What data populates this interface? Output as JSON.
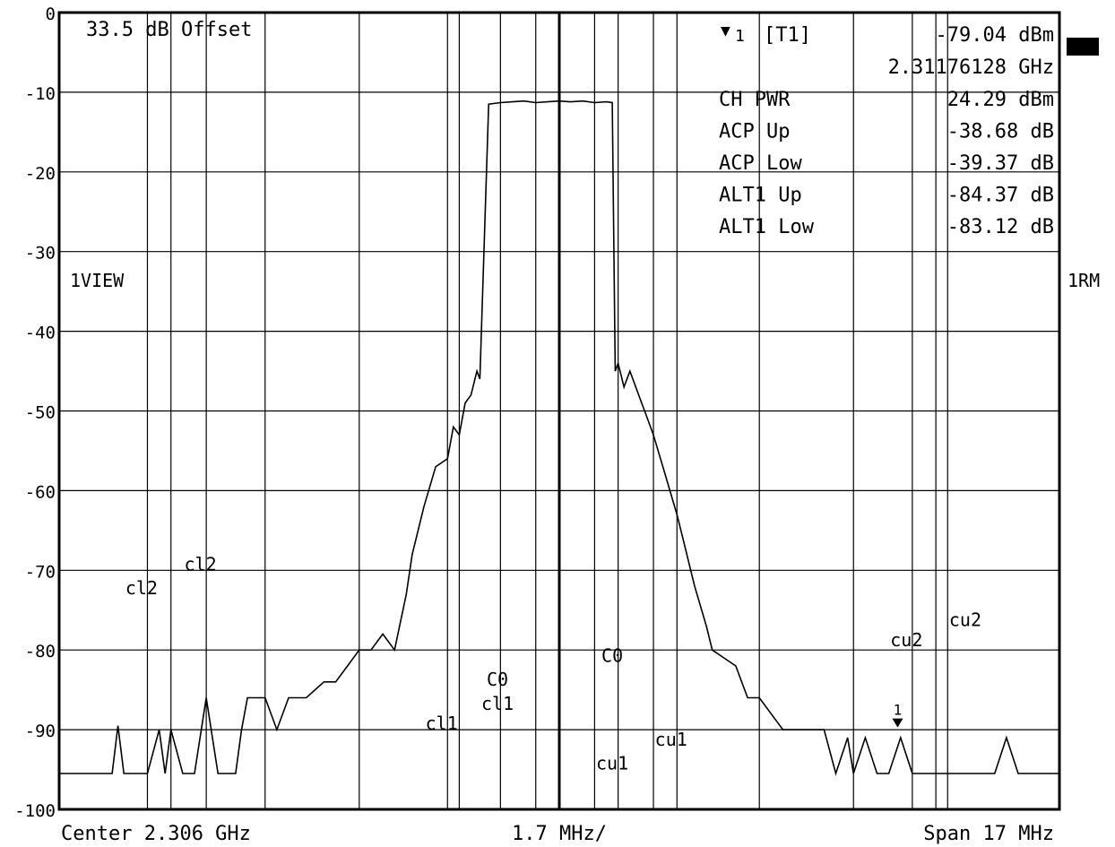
{
  "chart_data": {
    "type": "line",
    "title": "",
    "reference_offset_text": "33.5 dB Offset",
    "y_ticks": [
      "0",
      "-10",
      "-20",
      "-30",
      "-40",
      "-50",
      "-60",
      "-70",
      "-80",
      "-90",
      "-100"
    ],
    "ylim": [
      -100,
      0
    ],
    "grid": true,
    "left_label": "1VIEW",
    "right_label": "1RM",
    "bottom": {
      "center": "Center 2.306 GHz",
      "per_div": "1.7 MHz/",
      "span": "Span 17 MHz"
    },
    "x_mhz_range": [
      -8.5,
      8.5
    ],
    "x_unit_note": "MHz offset from center",
    "series": [
      {
        "x": [
          -8.5,
          -8.0,
          -7.6,
          -7.5,
          -7.4,
          -7.0,
          -6.8,
          -6.7,
          -6.6,
          -6.4,
          -6.2,
          -6.0,
          -5.8,
          -5.5,
          -5.4,
          -5.3,
          -5.0,
          -4.8,
          -4.6,
          -4.5,
          -4.3,
          -4.0,
          -3.8,
          -3.6,
          -3.4,
          -3.2,
          -3.0,
          -2.8,
          -2.6,
          -2.5,
          -2.3,
          -2.1,
          -1.9,
          -1.8,
          -1.7,
          -1.6,
          -1.5,
          -1.4,
          -1.35,
          -1.2,
          -1.0,
          -0.8,
          -0.6,
          -0.4,
          -0.2,
          0.0,
          0.2,
          0.4,
          0.6,
          0.8,
          0.9,
          0.95,
          1.0,
          1.1,
          1.2,
          1.4,
          1.5,
          1.6,
          1.8,
          2.0,
          2.1,
          2.3,
          2.5,
          2.6,
          2.8,
          3.0,
          3.2,
          3.4,
          3.6,
          3.8,
          4.0,
          4.2,
          4.5,
          4.7,
          4.9,
          5.0,
          5.2,
          5.4,
          5.6,
          5.8,
          6.0,
          6.2,
          6.4,
          6.5,
          6.6,
          6.8,
          7.0,
          7.2,
          7.4,
          7.6,
          7.8,
          8.0,
          8.3,
          8.5
        ],
        "y": [
          -95.5,
          -95.5,
          -95.5,
          -89.5,
          -95.5,
          -95.5,
          -90,
          -95.5,
          -90,
          -95.5,
          -95.5,
          -86,
          -95.5,
          -95.5,
          -90,
          -86,
          -86,
          -90,
          -86,
          -86,
          -86,
          -84,
          -84,
          -82,
          -80,
          -80,
          -78,
          -80,
          -73,
          -68,
          -62,
          -57,
          -56,
          -52,
          -53,
          -49,
          -48,
          -45,
          -46,
          -11.5,
          -11.3,
          -11.2,
          -11.1,
          -11.3,
          -11.2,
          -11.1,
          -11.2,
          -11.1,
          -11.3,
          -11.2,
          -11.3,
          -45,
          -44,
          -47,
          -45,
          -49,
          -51,
          -53,
          -58,
          -63,
          -66,
          -72,
          -77,
          -80,
          -81,
          -82,
          -86,
          -86,
          -88,
          -90,
          -90,
          -90,
          -90,
          -95.5,
          -91,
          -95.5,
          -91,
          -95.5,
          -95.5,
          -91,
          -95.5,
          -95.5,
          -95.5,
          -95.5,
          -95.5,
          -95.5,
          -95.5,
          -95.5,
          -95.5,
          -91,
          -95.5,
          -95.5,
          -95.5,
          -95.5
        ]
      }
    ],
    "vertical_lines_mhz": [
      -8.5,
      -7.0,
      -6.6,
      -6.0,
      -5.0,
      -3.4,
      -1.9,
      -1.7,
      -1.0,
      -0.4,
      0.0,
      0.6,
      1.0,
      1.6,
      2.0,
      3.4,
      5.0,
      6.0,
      6.4,
      6.6,
      8.5
    ],
    "channel_markers": [
      {
        "label": "cl2",
        "x_mhz": -7.1,
        "y": -73
      },
      {
        "label": "cl2",
        "x_mhz": -6.1,
        "y": -70
      },
      {
        "label": "cl1",
        "x_mhz": -2.0,
        "y": -90
      },
      {
        "label": "C0",
        "x_mhz": -1.05,
        "y": -84.5
      },
      {
        "label": "cl1",
        "x_mhz": -1.05,
        "y": -87.5
      },
      {
        "label": "C0",
        "x_mhz": 0.9,
        "y": -81.5
      },
      {
        "label": "cu1",
        "x_mhz": 0.9,
        "y": -95
      },
      {
        "label": "cu1",
        "x_mhz": 1.9,
        "y": -92
      },
      {
        "label": "cu2",
        "x_mhz": 5.9,
        "y": -79.5
      },
      {
        "label": "cu2",
        "x_mhz": 6.9,
        "y": -77
      }
    ],
    "marker": {
      "symbol": "▼",
      "number": "1",
      "label": "[T1]",
      "value": "-79.04 dBm",
      "frequency": "2.31176128 GHz",
      "x_mhz": 5.75,
      "y": -89.5
    },
    "readouts": [
      {
        "label": "CH PWR",
        "value": "24.29 dBm"
      },
      {
        "label": "ACP Up",
        "value": "-38.68 dB"
      },
      {
        "label": "ACP Low",
        "value": "-39.37 dB"
      },
      {
        "label": "ALT1 Up",
        "value": "-84.37 dB"
      },
      {
        "label": "ALT1 Low",
        "value": "-83.12 dB"
      }
    ]
  }
}
